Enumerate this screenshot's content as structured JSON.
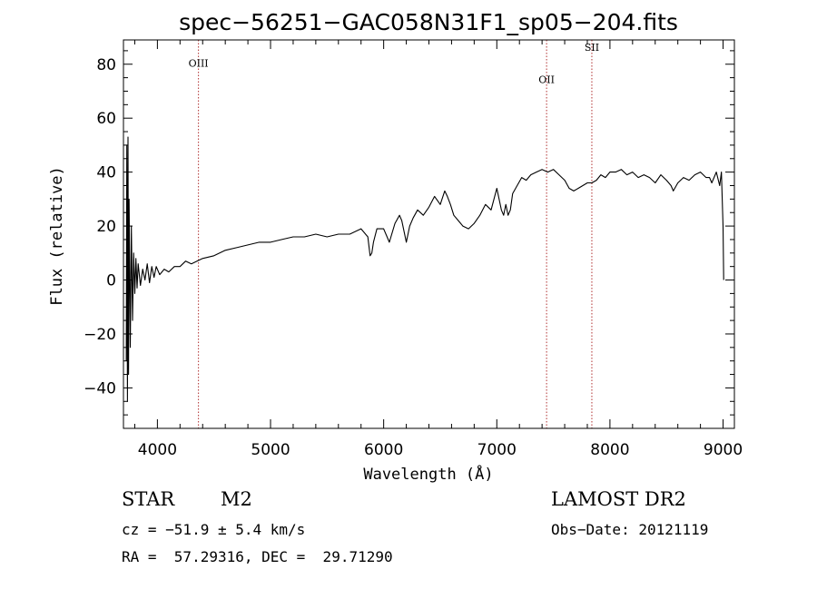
{
  "chart_data": {
    "type": "line",
    "title": "spec−56251−GAC058N31F1_sp05−204.fits",
    "xlabel": "Wavelength (Å)",
    "ylabel": "Flux (relative)",
    "xlim": [
      3700,
      9100
    ],
    "ylim": [
      -55,
      89
    ],
    "x_ticks": [
      4000,
      5000,
      6000,
      7000,
      8000,
      9000
    ],
    "x_tick_labels": [
      "4000",
      "5000",
      "6000",
      "7000",
      "8000",
      "9000"
    ],
    "y_ticks": [
      80,
      60,
      40,
      20,
      0,
      -20,
      -40
    ],
    "y_tick_labels": [
      "80",
      "60",
      "40",
      "20",
      "0",
      "−20",
      "−40"
    ],
    "grid": false,
    "emission_lines": [
      {
        "label": "OIII",
        "x": 4363,
        "label_y": 79
      },
      {
        "label": "OII",
        "x": 7440,
        "label_y": 73
      },
      {
        "label": "SII",
        "x": 7840,
        "label_y": 85
      }
    ],
    "series": [
      {
        "x": [
          3725,
          3730,
          3735,
          3740,
          3745,
          3750,
          3760,
          3770,
          3780,
          3790,
          3800,
          3810,
          3820,
          3830,
          3850,
          3870,
          3890,
          3910,
          3930,
          3950,
          3970,
          3990,
          4020,
          4060,
          4100,
          4150,
          4200,
          4250,
          4300,
          4350,
          4400,
          4500,
          4600,
          4700,
          4800,
          4900,
          5000,
          5100,
          5200,
          5300,
          5400,
          5500,
          5600,
          5700,
          5800,
          5860,
          5880,
          5895,
          5910,
          5940,
          6000,
          6050,
          6100,
          6140,
          6160,
          6180,
          6200,
          6230,
          6260,
          6300,
          6350,
          6400,
          6450,
          6500,
          6540,
          6563,
          6590,
          6620,
          6660,
          6700,
          6750,
          6800,
          6850,
          6900,
          6950,
          7000,
          7020,
          7040,
          7060,
          7080,
          7100,
          7120,
          7140,
          7180,
          7220,
          7260,
          7300,
          7350,
          7400,
          7450,
          7500,
          7550,
          7600,
          7640,
          7680,
          7720,
          7760,
          7800,
          7840,
          7880,
          7920,
          7960,
          8000,
          8050,
          8100,
          8150,
          8200,
          8250,
          8300,
          8350,
          8400,
          8450,
          8500,
          8540,
          8560,
          8600,
          8650,
          8700,
          8750,
          8800,
          8850,
          8880,
          8900,
          8940,
          8970,
          8985,
          9000,
          9005
        ],
        "values": [
          -30,
          50,
          -45,
          53,
          -35,
          30,
          -25,
          20,
          -15,
          10,
          -5,
          8,
          -3,
          6,
          -2,
          4,
          0,
          6,
          -1,
          5,
          1,
          5,
          2,
          4,
          3,
          5,
          5,
          7,
          6,
          7,
          8,
          9,
          11,
          12,
          13,
          14,
          14,
          15,
          16,
          16,
          17,
          16,
          17,
          17,
          19,
          16,
          9,
          10,
          14,
          19,
          19,
          14,
          21,
          24,
          22,
          18,
          14,
          20,
          23,
          26,
          24,
          27,
          31,
          28,
          33,
          31,
          28,
          24,
          22,
          20,
          19,
          21,
          24,
          28,
          26,
          34,
          30,
          26,
          24,
          28,
          24,
          26,
          32,
          35,
          38,
          37,
          39,
          40,
          41,
          40,
          41,
          39,
          37,
          34,
          33,
          34,
          35,
          36,
          36,
          37,
          39,
          38,
          40,
          40,
          41,
          39,
          40,
          38,
          39,
          38,
          36,
          39,
          37,
          35,
          33,
          36,
          38,
          37,
          39,
          40,
          38,
          38,
          36,
          40,
          35,
          40,
          20,
          0
        ]
      }
    ]
  },
  "info": {
    "object_type": "STAR",
    "subclass": "M2",
    "survey": "LAMOST DR2",
    "cz": "cz = −51.9 ± 5.4 km/s",
    "obs_date": "Obs−Date: 20121119",
    "coords": "RA =  57.29316, DEC =  29.71290"
  }
}
